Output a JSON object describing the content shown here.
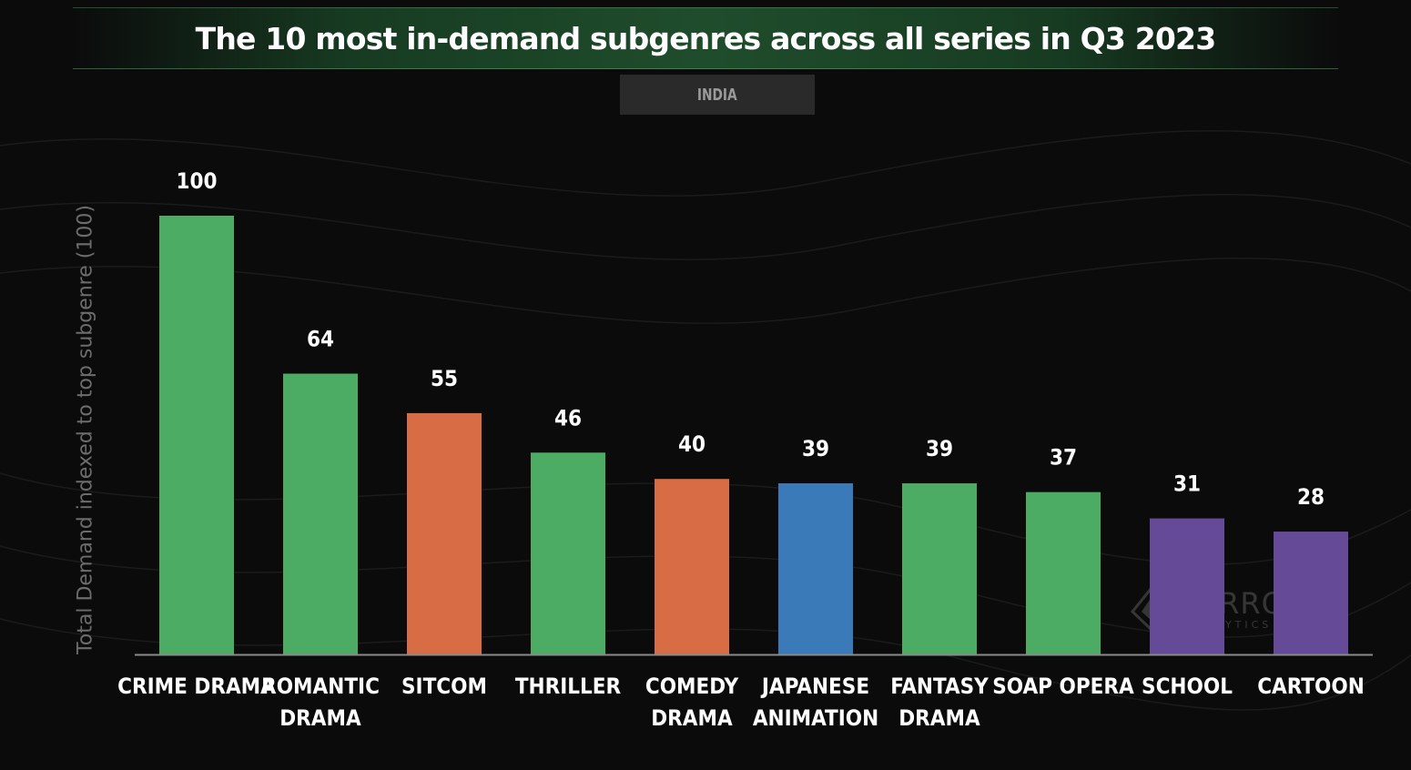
{
  "title": "The 10 most in-demand subgenres across all series in Q3 2023",
  "subtitle": "INDIA",
  "watermark": {
    "name": "PARROT",
    "sub": "ANALYTICS"
  },
  "chart_data": {
    "type": "bar",
    "title": "The 10 most in-demand subgenres across all series in Q3 2023",
    "subtitle": "INDIA",
    "ylabel": "Total Demand indexed to top subgenre (100)",
    "xlabel": "",
    "ylim": [
      0,
      100
    ],
    "grid": false,
    "categories": [
      [
        "CRIME DRAMA"
      ],
      [
        "ROMANTIC",
        "DRAMA"
      ],
      [
        "SITCOM"
      ],
      [
        "THRILLER"
      ],
      [
        "COMEDY",
        "DRAMA"
      ],
      [
        "JAPANESE",
        "ANIMATION"
      ],
      [
        "FANTASY",
        "DRAMA"
      ],
      [
        "SOAP OPERA"
      ],
      [
        "SCHOOL"
      ],
      [
        "CARTOON"
      ]
    ],
    "values": [
      100,
      64,
      55,
      46,
      40,
      39,
      39,
      37,
      31,
      28
    ],
    "colors": [
      "#4cac64",
      "#4cac64",
      "#d86c44",
      "#4cac64",
      "#d86c44",
      "#3a7ab8",
      "#4cac64",
      "#4cac64",
      "#654a98",
      "#654a98"
    ],
    "value_label_color": "#ffffff",
    "category_label_color": "#ffffff",
    "axis_color": "#8a8a8a"
  }
}
